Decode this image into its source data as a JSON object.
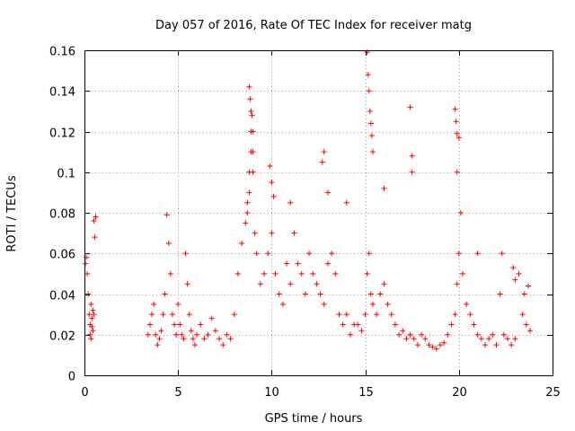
{
  "chart_data": {
    "type": "scatter",
    "title": "Day 057 of 2016, Rate Of TEC Index for receiver matg",
    "xlabel": "GPS time / hours",
    "ylabel": "ROTI / TECUs",
    "xlim": [
      0,
      25
    ],
    "ylim": [
      0,
      0.16
    ],
    "xticks": [
      0,
      5,
      10,
      15,
      20,
      25
    ],
    "yticks": [
      0,
      0.02,
      0.04,
      0.06,
      0.08,
      0.1,
      0.12,
      0.14,
      0.16
    ],
    "xtick_labels": [
      "0",
      "5",
      "10",
      "15",
      "20",
      "25"
    ],
    "ytick_labels": [
      "0",
      "0.02",
      "0.04",
      "0.06",
      "0.08",
      "0.1",
      "0.12",
      "0.14",
      "0.16"
    ],
    "grid": true,
    "marker": "+",
    "color": "#ff0000",
    "series": [
      {
        "name": "ROTI",
        "x": [
          0.05,
          0.1,
          0.15,
          0.2,
          0.25,
          0.3,
          0.35,
          0.4,
          0.45,
          0.5,
          0.55,
          0.6,
          0.3,
          0.35,
          0.4,
          0.45,
          0.5,
          3.4,
          3.5,
          3.6,
          3.7,
          3.8,
          3.9,
          4.0,
          4.1,
          4.2,
          4.3,
          4.4,
          4.5,
          4.6,
          4.7,
          4.8,
          4.9,
          5.0,
          5.1,
          5.2,
          5.3,
          5.4,
          5.5,
          5.6,
          5.7,
          5.8,
          5.9,
          6.0,
          6.2,
          6.4,
          6.6,
          6.8,
          7.0,
          7.2,
          7.4,
          7.6,
          7.8,
          8.0,
          8.2,
          8.4,
          8.6,
          8.7,
          8.8,
          8.9,
          9.0,
          9.1,
          9.2,
          9.4,
          9.6,
          9.8,
          10.0,
          10.2,
          10.4,
          10.6,
          10.8,
          11.0,
          11.2,
          11.4,
          11.6,
          11.8,
          12.0,
          12.2,
          12.4,
          12.6,
          12.8,
          13.0,
          13.2,
          13.4,
          13.6,
          13.8,
          14.0,
          14.2,
          14.4,
          14.6,
          14.8,
          15.0,
          15.1,
          15.2,
          15.3,
          15.4,
          15.6,
          15.8,
          16.0,
          16.2,
          16.4,
          16.6,
          16.8,
          17.0,
          17.2,
          17.4,
          17.6,
          17.8,
          18.0,
          18.2,
          18.4,
          18.6,
          18.8,
          19.0,
          19.2,
          19.4,
          19.6,
          19.8,
          19.9,
          20.0,
          20.2,
          20.4,
          20.6,
          20.8,
          21.0,
          21.2,
          21.4,
          21.6,
          21.8,
          22.0,
          22.2,
          22.4,
          22.6,
          22.8,
          23.0,
          23.2,
          23.4,
          23.6,
          23.8,
          8.8,
          8.85,
          8.9,
          8.95,
          9.0,
          8.9,
          9.0,
          8.8,
          8.7,
          9.9,
          10.0,
          10.1,
          11.0,
          12.7,
          12.8,
          13.0,
          14.0,
          15.1,
          15.15,
          15.2,
          15.25,
          15.3,
          15.35,
          15.4,
          16.0,
          17.4,
          17.5,
          17.5,
          19.8,
          19.85,
          19.9,
          20.0,
          19.9,
          20.1,
          21.0,
          22.3,
          22.9,
          23.0,
          23.5,
          23.7
        ],
        "y": [
          0.055,
          0.058,
          0.05,
          0.04,
          0.03,
          0.025,
          0.035,
          0.028,
          0.032,
          0.076,
          0.068,
          0.078,
          0.02,
          0.018,
          0.024,
          0.022,
          0.03,
          0.02,
          0.025,
          0.03,
          0.035,
          0.02,
          0.015,
          0.018,
          0.022,
          0.03,
          0.04,
          0.079,
          0.065,
          0.05,
          0.03,
          0.025,
          0.02,
          0.035,
          0.025,
          0.02,
          0.018,
          0.06,
          0.045,
          0.03,
          0.022,
          0.018,
          0.015,
          0.02,
          0.025,
          0.018,
          0.02,
          0.028,
          0.022,
          0.018,
          0.015,
          0.02,
          0.018,
          0.03,
          0.05,
          0.065,
          0.075,
          0.08,
          0.1,
          0.12,
          0.11,
          0.07,
          0.06,
          0.045,
          0.05,
          0.06,
          0.07,
          0.05,
          0.04,
          0.035,
          0.055,
          0.045,
          0.07,
          0.055,
          0.05,
          0.04,
          0.06,
          0.05,
          0.045,
          0.04,
          0.035,
          0.055,
          0.06,
          0.05,
          0.03,
          0.025,
          0.03,
          0.02,
          0.025,
          0.025,
          0.022,
          0.03,
          0.05,
          0.06,
          0.04,
          0.035,
          0.03,
          0.04,
          0.045,
          0.035,
          0.03,
          0.025,
          0.02,
          0.022,
          0.018,
          0.02,
          0.018,
          0.015,
          0.02,
          0.018,
          0.015,
          0.014,
          0.013,
          0.015,
          0.016,
          0.02,
          0.025,
          0.03,
          0.045,
          0.06,
          0.05,
          0.035,
          0.03,
          0.025,
          0.02,
          0.018,
          0.015,
          0.018,
          0.02,
          0.015,
          0.04,
          0.02,
          0.018,
          0.015,
          0.018,
          0.05,
          0.03,
          0.025,
          0.022,
          0.142,
          0.136,
          0.13,
          0.128,
          0.12,
          0.11,
          0.1,
          0.09,
          0.085,
          0.103,
          0.095,
          0.088,
          0.085,
          0.105,
          0.11,
          0.09,
          0.085,
          0.159,
          0.148,
          0.14,
          0.13,
          0.124,
          0.118,
          0.11,
          0.092,
          0.132,
          0.108,
          0.1,
          0.131,
          0.125,
          0.119,
          0.117,
          0.1,
          0.08,
          0.06,
          0.06,
          0.053,
          0.047,
          0.04,
          0.044
        ]
      }
    ]
  }
}
